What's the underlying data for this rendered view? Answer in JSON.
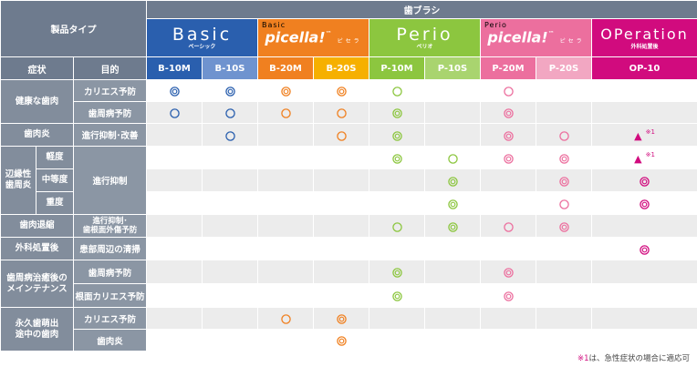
{
  "header": {
    "brush_group": "歯ブラシ",
    "product_type": "製品タイプ",
    "symptom": "症状",
    "purpose": "目的"
  },
  "brands": [
    {
      "name": "Basic",
      "sub": "ベーシック",
      "color": "#2a5fae"
    },
    {
      "small": "Basic",
      "name": "picella!",
      "tm": "™",
      "sub": "ピセラ",
      "color": "#f08020"
    },
    {
      "name": "Perio",
      "sub": "ペリオ",
      "color": "#8cc63f"
    },
    {
      "small": "Perio",
      "name": "picella!",
      "tm": "™",
      "sub": "ピセラ",
      "color": "#ec6f9e"
    },
    {
      "name": "OPeration",
      "sub": "外科処置後",
      "color": "#d10b7e"
    }
  ],
  "codes": [
    {
      "label": "B-10M",
      "color": "#2a5fae"
    },
    {
      "label": "B-10S",
      "color": "#6f93cf"
    },
    {
      "label": "B-20M",
      "color": "#f08020"
    },
    {
      "label": "B-20S",
      "color": "#f6b000"
    },
    {
      "label": "P-10M",
      "color": "#8cc63f"
    },
    {
      "label": "P-10S",
      "color": "#a9d46f"
    },
    {
      "label": "P-20M",
      "color": "#ec6f9e"
    },
    {
      "label": "P-20S",
      "color": "#f2a7c2"
    },
    {
      "label": "OP-10",
      "color": "#d10b7e"
    }
  ],
  "symbol_colors": {
    "blue": "#2a5fae",
    "orange": "#f08020",
    "green": "#8cc63f",
    "pink": "#ec6f9e",
    "magenta": "#d10b7e"
  },
  "col_colors": [
    "blue",
    "blue",
    "orange",
    "orange",
    "green",
    "green",
    "pink",
    "pink",
    "magenta"
  ],
  "row_labels": {
    "healthy": "健康な歯肉",
    "caries_prevention": "カリエス予防",
    "perio_prevention": "歯周病予防",
    "gingivitis": "歯肉炎",
    "gingivitis_purpose": "進行抑制･改善",
    "marginal_a": "辺縁性",
    "marginal_b": "歯周炎",
    "mild": "軽度",
    "moderate": "中等度",
    "severe": "重度",
    "progress_suppress": "進行抑制",
    "recession": "歯肉退縮",
    "recession_purpose_a": "進行抑制･",
    "recession_purpose_b": "歯根面外傷予防",
    "surgery": "外科処置後",
    "surgery_purpose": "患部周辺の清掃",
    "maint_a": "歯周病治癒後の",
    "maint_b": "メインテナンス",
    "root_caries": "根面カリエス予防",
    "erupting_a": "永久歯萌出",
    "erupting_b": "途中の歯肉",
    "gum_inflammation": "歯肉炎"
  },
  "rows": [
    [
      "dbl",
      "dbl",
      "dbl",
      "dbl",
      "sgl",
      "",
      "sgl",
      "",
      ""
    ],
    [
      "sgl",
      "sgl",
      "sgl",
      "sgl",
      "dbl",
      "",
      "dbl",
      "",
      ""
    ],
    [
      "",
      "sgl",
      "",
      "sgl",
      "dbl",
      "",
      "dbl",
      "sgl",
      "tri"
    ],
    [
      "",
      "",
      "",
      "",
      "dbl",
      "sgl",
      "dbl",
      "dbl",
      "tri"
    ],
    [
      "",
      "",
      "",
      "",
      "",
      "dbl",
      "",
      "dbl",
      "dbl"
    ],
    [
      "",
      "",
      "",
      "",
      "",
      "dbl",
      "",
      "sgl",
      "dbl"
    ],
    [
      "",
      "",
      "",
      "",
      "sgl",
      "dbl",
      "sgl",
      "dbl",
      ""
    ],
    [
      "",
      "",
      "",
      "",
      "",
      "",
      "",
      "",
      "dbl"
    ],
    [
      "",
      "",
      "",
      "",
      "dbl",
      "",
      "dbl",
      "",
      ""
    ],
    [
      "",
      "",
      "",
      "",
      "dbl",
      "",
      "dbl",
      "",
      ""
    ],
    [
      "",
      "",
      "sgl",
      "dbl",
      "",
      "",
      "",
      "",
      ""
    ],
    [
      "",
      "",
      "",
      "dbl",
      "",
      "",
      "",
      "",
      ""
    ]
  ],
  "note_mark": "※1",
  "footnote": {
    "mark": "※1",
    "text": "は、急性症状の場合に適応可"
  }
}
